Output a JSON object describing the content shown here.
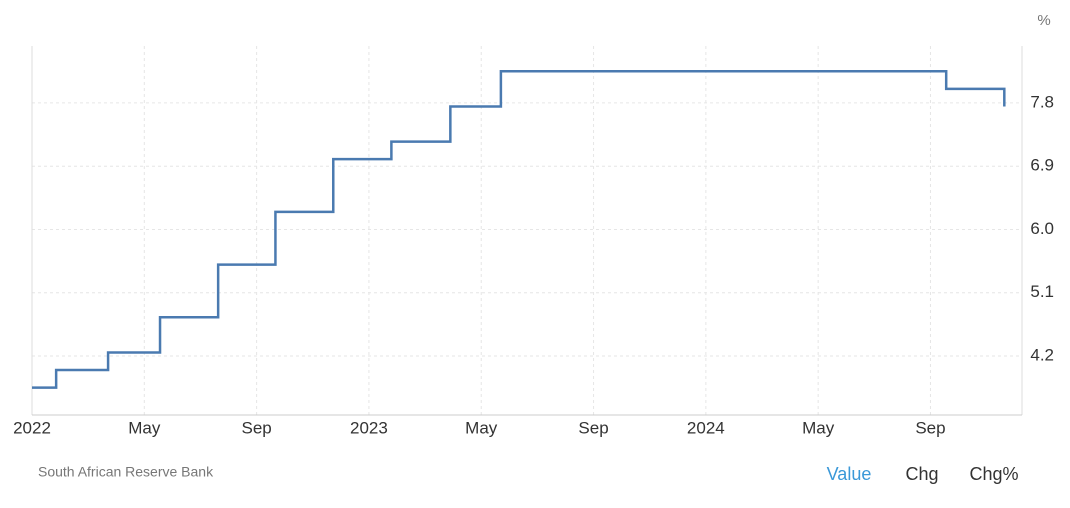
{
  "chart_data": {
    "type": "line",
    "step": "after",
    "unit": "%",
    "source": "South African Reserve Bank",
    "tabs": [
      "Value",
      "Chg",
      "Chg%"
    ],
    "active_tab": 0,
    "x": [
      0,
      0.86,
      2.71,
      4.56,
      6.63,
      8.67,
      10.73,
      12.8,
      14.9,
      16.7,
      32.56,
      34.63
    ],
    "series": [
      {
        "color": "#4a7ab0",
        "values": [
          3.75,
          4.0,
          4.25,
          4.75,
          5.5,
          6.25,
          7.0,
          7.25,
          7.75,
          8.25,
          8.0,
          7.75
        ]
      }
    ],
    "xlim": [
      0,
      35.26
    ],
    "xticks": [
      {
        "value": 0,
        "label": "2022"
      },
      {
        "value": 4,
        "label": "May"
      },
      {
        "value": 8,
        "label": "Sep"
      },
      {
        "value": 12,
        "label": "2023"
      },
      {
        "value": 16,
        "label": "May"
      },
      {
        "value": 20,
        "label": "Sep"
      },
      {
        "value": 24,
        "label": "2024"
      },
      {
        "value": 28,
        "label": "May"
      },
      {
        "value": 32,
        "label": "Sep"
      }
    ],
    "ylim": [
      3.36,
      8.61
    ],
    "yticks": [
      4.2,
      5.1,
      {
        "value": 6,
        "label": "6.0"
      },
      6.9,
      7.8
    ],
    "grid": true
  }
}
